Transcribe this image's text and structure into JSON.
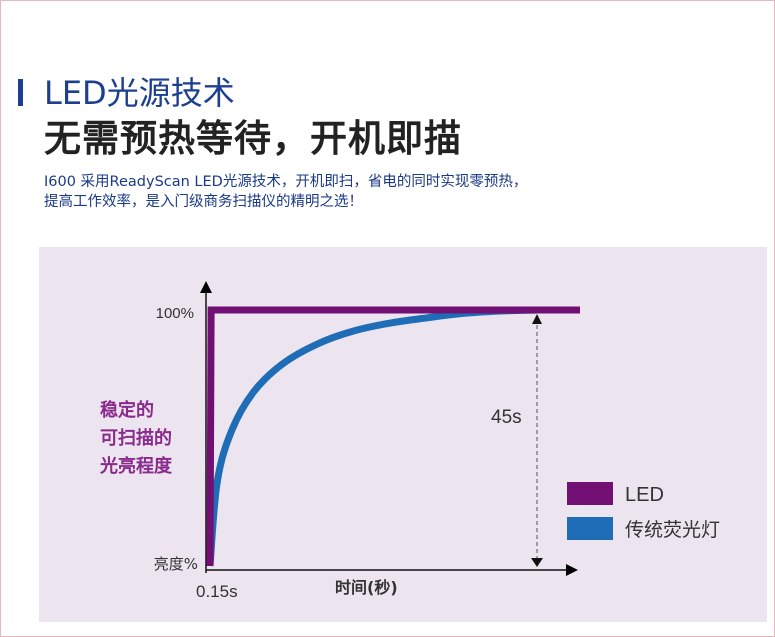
{
  "header": {
    "title": "LED光源技术",
    "subtitle": "无需预热等待，开机即描",
    "description_lines": [
      "I600 采用ReadyScan LED光源技术，开机即扫，省电的同时实现零预热，",
      "提高工作效率，是入门级商务扫描仪的精明之选！"
    ]
  },
  "colors": {
    "title_blue": "#1c3f8f",
    "panel_bg": "#ece4ef",
    "led_purple": "#720f73",
    "fluorescent_blue": "#1e6db6",
    "ylabel_purple": "#8a2a8c"
  },
  "chart_data": {
    "type": "line",
    "x": {
      "label": "时间(秒)",
      "start_label": "0.15s",
      "range": [
        0,
        45
      ]
    },
    "y": {
      "ylabel_lines": [
        "稳定的",
        "可扫描的",
        "光亮程度"
      ],
      "bottom_label": "亮度%",
      "top_label": "100%",
      "range": [
        0,
        100
      ]
    },
    "series": [
      {
        "name": "LED",
        "color": "#720f73",
        "x": [
          0,
          0.15,
          50
        ],
        "y": [
          0,
          100,
          100
        ]
      },
      {
        "name": "传统荧光灯",
        "color": "#1e6db6",
        "x": [
          0,
          1,
          3,
          6,
          10,
          15,
          20,
          25,
          30,
          35,
          40,
          45
        ],
        "y": [
          0,
          33,
          53,
          68,
          79,
          87,
          92,
          95,
          97,
          98.7,
          99.6,
          100
        ]
      }
    ],
    "annotation": {
      "text": "45s",
      "x": 45
    },
    "legend_position": "bottom-right",
    "grid": false
  }
}
